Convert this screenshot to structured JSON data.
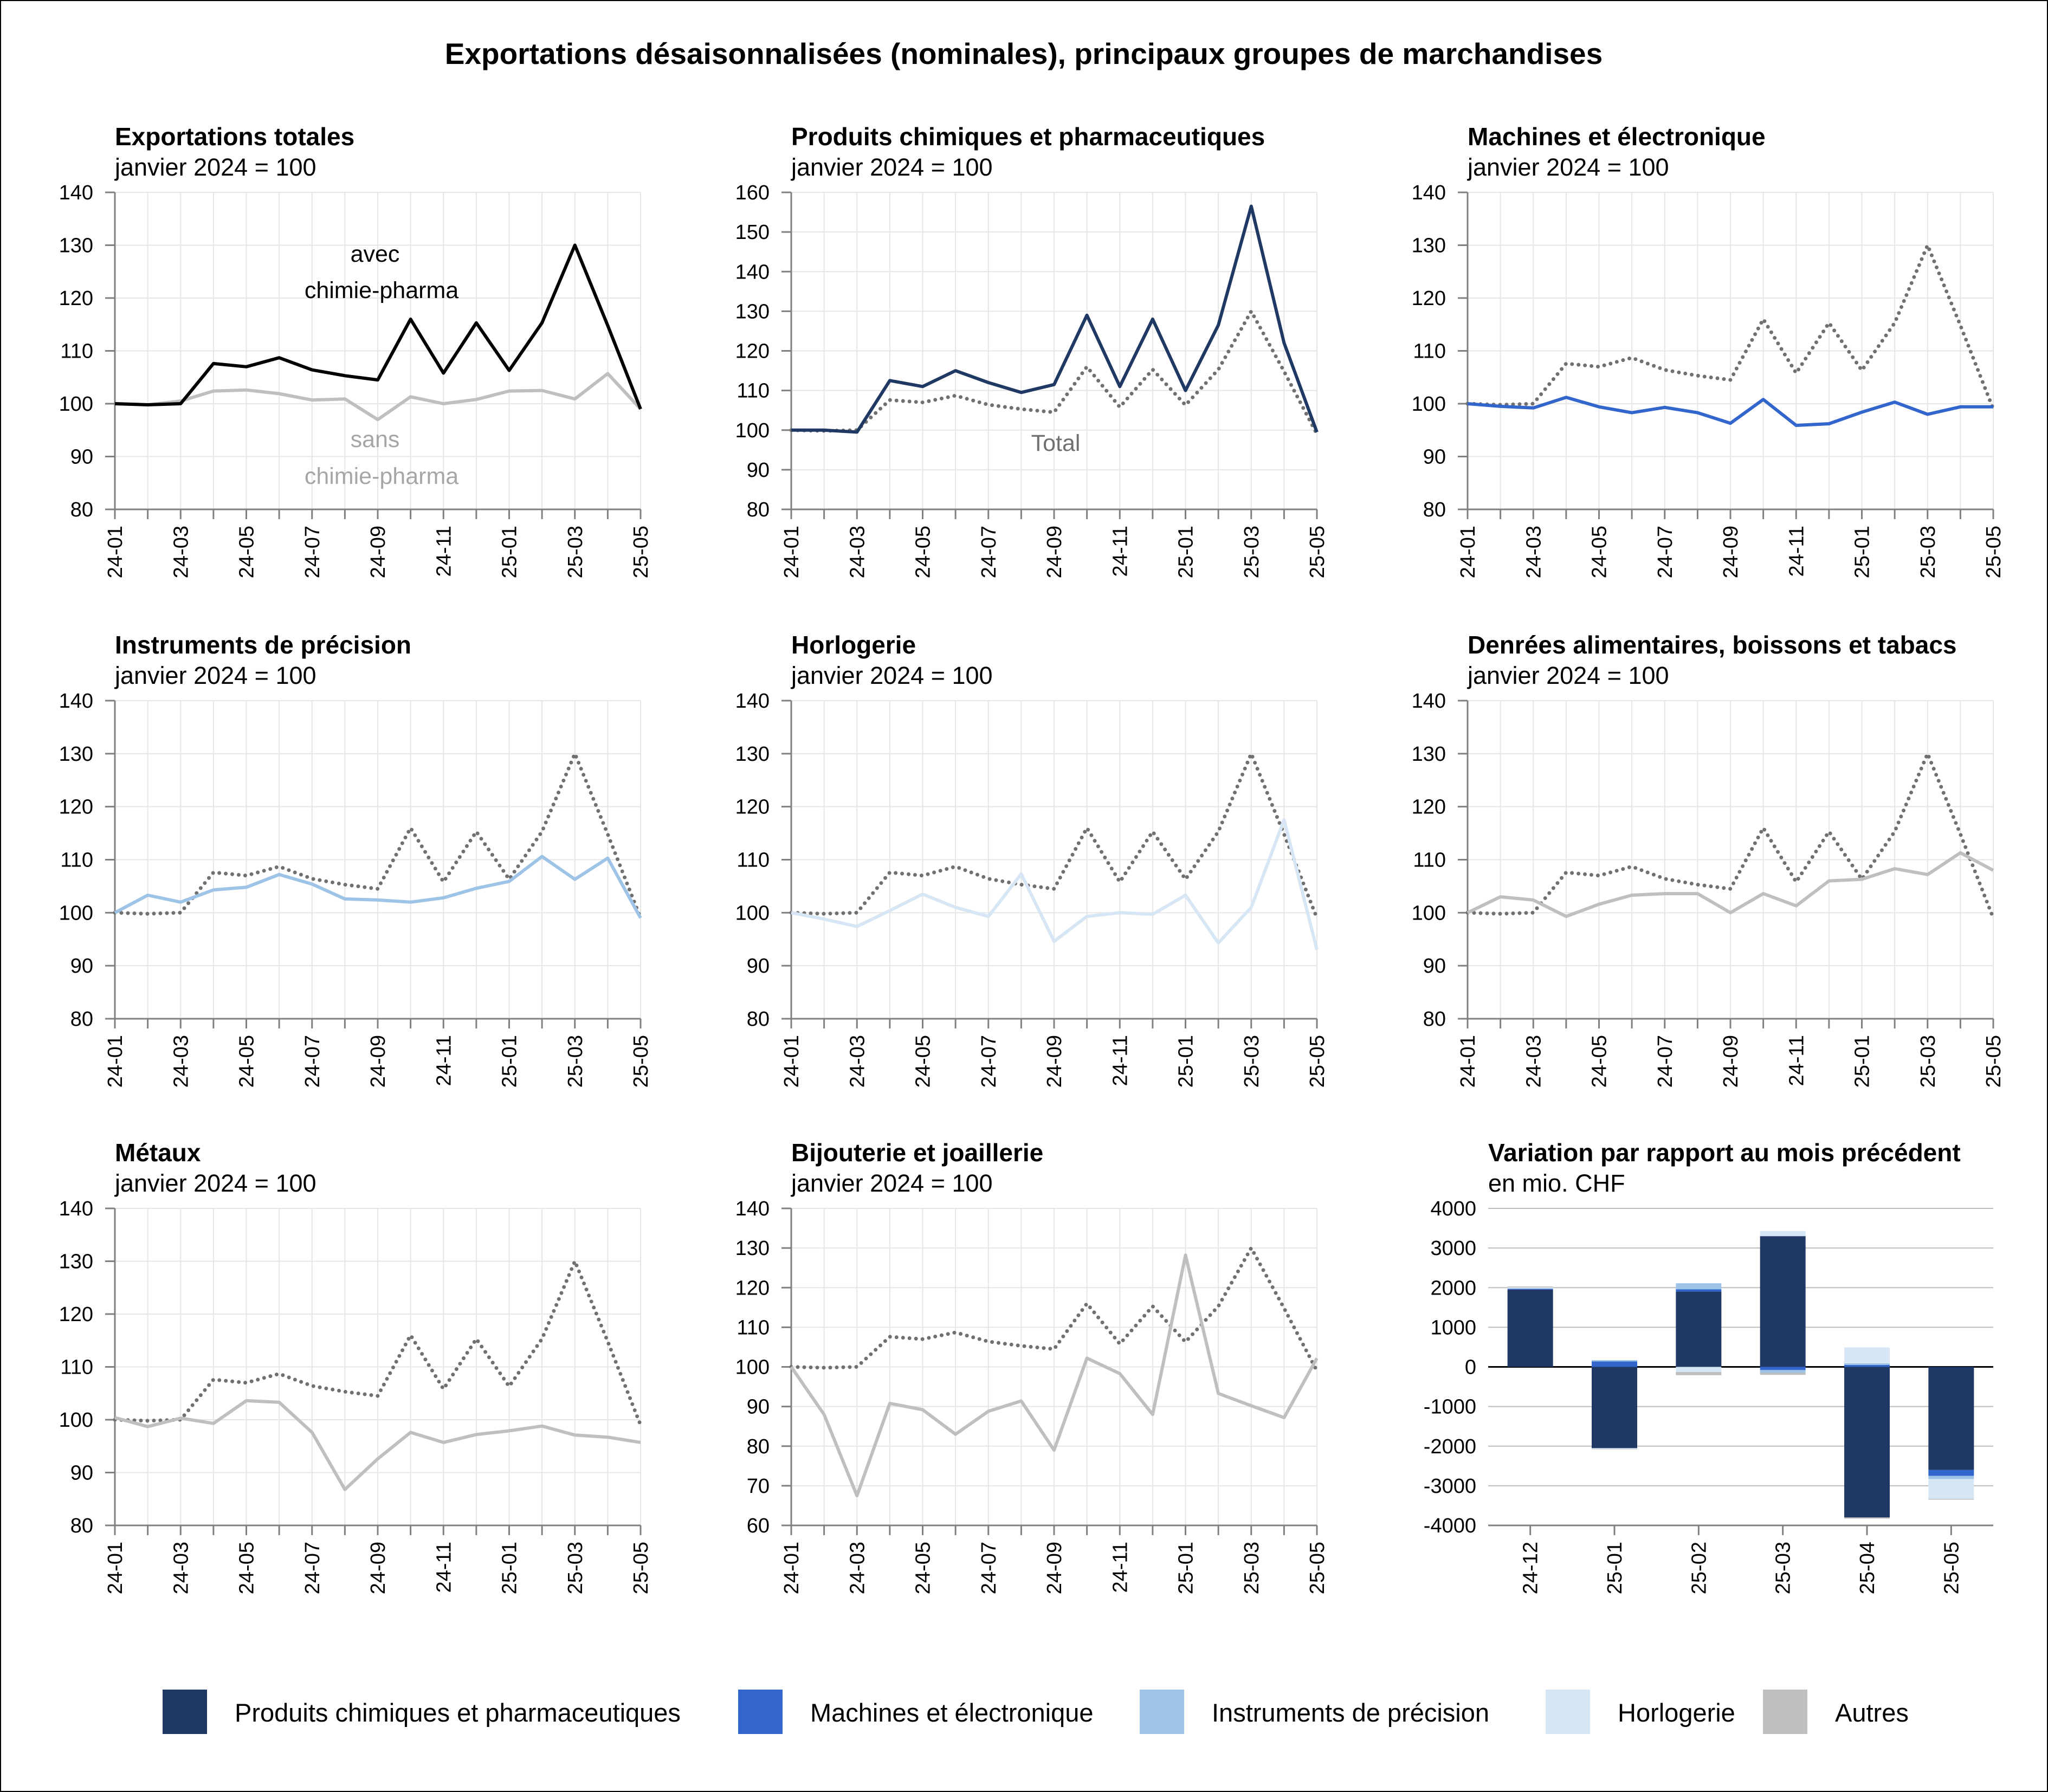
{
  "title": "Exportations désaisonnalisées (nominales), principaux groupes de marchandises",
  "colors": {
    "pharma": "#1f3864",
    "machines": "#3366cc",
    "precision": "#9dc3e6",
    "watches": "#d6e6f5",
    "others": "#bfbfbf",
    "total": "#000000",
    "total_dotted": "#707070",
    "excl_pharma": "#bfbfbf"
  },
  "legend": [
    {
      "label": "Produits chimiques et pharmaceutiques",
      "color": "#1f3864"
    },
    {
      "label": "Machines et électronique",
      "color": "#3366cc"
    },
    {
      "label": "Instruments de précision",
      "color": "#9dc3e6"
    },
    {
      "label": "Horlogerie",
      "color": "#d6e6f5"
    },
    {
      "label": "Autres",
      "color": "#bfbfbf"
    }
  ],
  "chart_data": [
    {
      "type": "line",
      "title": "Exportations totales",
      "subtitle": "janvier 2024 = 100",
      "x": [
        "24-01",
        "24-02",
        "24-03",
        "24-04",
        "24-05",
        "24-06",
        "24-07",
        "24-08",
        "24-09",
        "24-10",
        "24-11",
        "24-12",
        "25-01",
        "25-02",
        "25-03",
        "25-04",
        "25-05"
      ],
      "x_tick_labels": [
        "24-01",
        "24-03",
        "24-05",
        "24-07",
        "24-09",
        "24-11",
        "25-01",
        "25-03",
        "25-05"
      ],
      "ylim": [
        80,
        140
      ],
      "yticks": [
        80,
        90,
        100,
        110,
        120,
        130,
        140
      ],
      "series": [
        {
          "name": "avec chimie-pharma",
          "color": "#000000",
          "style": "solid",
          "values": [
            100,
            99.8,
            100,
            107.6,
            107,
            108.7,
            106.4,
            105.3,
            104.5,
            116,
            105.8,
            115.3,
            106.3,
            115.3,
            130,
            114.8,
            99
          ]
        },
        {
          "name": "sans chimie-pharma",
          "color": "#bfbfbf",
          "style": "solid",
          "values": [
            100,
            99.8,
            100.5,
            102.4,
            102.6,
            101.9,
            100.7,
            100.9,
            97,
            101.3,
            100,
            100.8,
            102.4,
            102.5,
            100.9,
            105.7,
            99
          ]
        }
      ],
      "annotations": [
        {
          "lines": [
            "avec",
            "chimie-pharma"
          ],
          "color": "#000000"
        },
        {
          "lines": [
            "sans",
            "chimie-pharma"
          ],
          "color": "#a6a6a6"
        }
      ]
    },
    {
      "type": "line",
      "title": "Produits chimiques et pharmaceutiques",
      "subtitle": "janvier 2024 = 100",
      "x": [
        "24-01",
        "24-02",
        "24-03",
        "24-04",
        "24-05",
        "24-06",
        "24-07",
        "24-08",
        "24-09",
        "24-10",
        "24-11",
        "24-12",
        "25-01",
        "25-02",
        "25-03",
        "25-04",
        "25-05"
      ],
      "x_tick_labels": [
        "24-01",
        "24-03",
        "24-05",
        "24-07",
        "24-09",
        "24-11",
        "25-01",
        "25-03",
        "25-05"
      ],
      "ylim": [
        80,
        160
      ],
      "yticks": [
        80,
        90,
        100,
        110,
        120,
        130,
        140,
        150,
        160
      ],
      "series": [
        {
          "name": "Produits chimiques et pharmaceutiques",
          "color": "#1f3864",
          "style": "solid",
          "values": [
            100,
            100,
            99.5,
            112.5,
            111,
            115,
            112,
            109.5,
            111.5,
            129,
            111,
            128,
            110,
            126.5,
            156.5,
            122,
            99.5
          ]
        },
        {
          "name": "Total",
          "color": "#707070",
          "style": "dotted",
          "values": [
            100,
            99.8,
            100,
            107.6,
            107,
            108.7,
            106.4,
            105.3,
            104.5,
            116,
            105.8,
            115.3,
            106.3,
            115.3,
            130,
            114.8,
            99
          ]
        }
      ],
      "annotations": [
        {
          "lines": [
            "Total"
          ],
          "color": "#707070"
        }
      ]
    },
    {
      "type": "line",
      "title": "Machines et électronique",
      "subtitle": "janvier 2024 = 100",
      "x": [
        "24-01",
        "24-02",
        "24-03",
        "24-04",
        "24-05",
        "24-06",
        "24-07",
        "24-08",
        "24-09",
        "24-10",
        "24-11",
        "24-12",
        "25-01",
        "25-02",
        "25-03",
        "25-04",
        "25-05"
      ],
      "x_tick_labels": [
        "24-01",
        "24-03",
        "24-05",
        "24-07",
        "24-09",
        "24-11",
        "25-01",
        "25-03",
        "25-05"
      ],
      "ylim": [
        80,
        140
      ],
      "yticks": [
        80,
        90,
        100,
        110,
        120,
        130,
        140
      ],
      "series": [
        {
          "name": "Machines et électronique",
          "color": "#3366cc",
          "style": "solid",
          "values": [
            100,
            99.5,
            99.2,
            101.2,
            99.4,
            98.3,
            99.3,
            98.3,
            96.3,
            100.8,
            95.9,
            96.2,
            98.4,
            100.3,
            98,
            99.4,
            99.4
          ]
        },
        {
          "name": "Total",
          "color": "#707070",
          "style": "dotted",
          "values": [
            100,
            99.8,
            100,
            107.6,
            107,
            108.7,
            106.4,
            105.3,
            104.5,
            116,
            105.8,
            115.3,
            106.3,
            115.3,
            130,
            114.8,
            99
          ]
        }
      ]
    },
    {
      "type": "line",
      "title": "Instruments de précision",
      "subtitle": "janvier 2024 = 100",
      "x": [
        "24-01",
        "24-02",
        "24-03",
        "24-04",
        "24-05",
        "24-06",
        "24-07",
        "24-08",
        "24-09",
        "24-10",
        "24-11",
        "24-12",
        "25-01",
        "25-02",
        "25-03",
        "25-04",
        "25-05"
      ],
      "x_tick_labels": [
        "24-01",
        "24-03",
        "24-05",
        "24-07",
        "24-09",
        "24-11",
        "25-01",
        "25-03",
        "25-05"
      ],
      "ylim": [
        80,
        140
      ],
      "yticks": [
        80,
        90,
        100,
        110,
        120,
        130,
        140
      ],
      "series": [
        {
          "name": "Instruments de précision",
          "color": "#9dc3e6",
          "style": "solid",
          "values": [
            100,
            103.3,
            102,
            104.3,
            104.8,
            107.2,
            105.4,
            102.6,
            102.4,
            102,
            102.8,
            104.6,
            105.9,
            110.6,
            106.3,
            110.3,
            99
          ]
        },
        {
          "name": "Total",
          "color": "#707070",
          "style": "dotted",
          "values": [
            100,
            99.8,
            100,
            107.6,
            107,
            108.7,
            106.4,
            105.3,
            104.5,
            116,
            105.8,
            115.3,
            106.3,
            115.3,
            130,
            114.8,
            99
          ]
        }
      ]
    },
    {
      "type": "line",
      "title": "Horlogerie",
      "subtitle": "janvier 2024 = 100",
      "x": [
        "24-01",
        "24-02",
        "24-03",
        "24-04",
        "24-05",
        "24-06",
        "24-07",
        "24-08",
        "24-09",
        "24-10",
        "24-11",
        "24-12",
        "25-01",
        "25-02",
        "25-03",
        "25-04",
        "25-05"
      ],
      "x_tick_labels": [
        "24-01",
        "24-03",
        "24-05",
        "24-07",
        "24-09",
        "24-11",
        "25-01",
        "25-03",
        "25-05"
      ],
      "ylim": [
        80,
        140
      ],
      "yticks": [
        80,
        90,
        100,
        110,
        120,
        130,
        140
      ],
      "series": [
        {
          "name": "Horlogerie",
          "color": "#d6e6f5",
          "style": "solid",
          "values": [
            100,
            98.8,
            97.4,
            100.4,
            103.5,
            101,
            99.3,
            107.3,
            94.6,
            99.3,
            100,
            99.7,
            103.3,
            94.3,
            101,
            117.5,
            93
          ]
        },
        {
          "name": "Total",
          "color": "#707070",
          "style": "dotted",
          "values": [
            100,
            99.8,
            100,
            107.6,
            107,
            108.7,
            106.4,
            105.3,
            104.5,
            116,
            105.8,
            115.3,
            106.3,
            115.3,
            130,
            114.8,
            99
          ]
        }
      ]
    },
    {
      "type": "line",
      "title": "Denrées alimentaires, boissons et tabacs",
      "subtitle": "janvier 2024 = 100",
      "x": [
        "24-01",
        "24-02",
        "24-03",
        "24-04",
        "24-05",
        "24-06",
        "24-07",
        "24-08",
        "24-09",
        "24-10",
        "24-11",
        "24-12",
        "25-01",
        "25-02",
        "25-03",
        "25-04",
        "25-05"
      ],
      "x_tick_labels": [
        "24-01",
        "24-03",
        "24-05",
        "24-07",
        "24-09",
        "24-11",
        "25-01",
        "25-03",
        "25-05"
      ],
      "ylim": [
        80,
        140
      ],
      "yticks": [
        80,
        90,
        100,
        110,
        120,
        130,
        140
      ],
      "series": [
        {
          "name": "Denrées alimentaires, boissons et tabacs",
          "color": "#bfbfbf",
          "style": "solid",
          "values": [
            100,
            103,
            102.4,
            99.3,
            101.6,
            103.3,
            103.6,
            103.6,
            100,
            103.6,
            101.3,
            106,
            106.3,
            108.3,
            107.2,
            111.3,
            108
          ]
        },
        {
          "name": "Total",
          "color": "#707070",
          "style": "dotted",
          "values": [
            100,
            99.8,
            100,
            107.6,
            107,
            108.7,
            106.4,
            105.3,
            104.5,
            116,
            105.8,
            115.3,
            106.3,
            115.3,
            130,
            114.8,
            99
          ]
        }
      ]
    },
    {
      "type": "line",
      "title": "Métaux",
      "subtitle": "janvier 2024 = 100",
      "x": [
        "24-01",
        "24-02",
        "24-03",
        "24-04",
        "24-05",
        "24-06",
        "24-07",
        "24-08",
        "24-09",
        "24-10",
        "24-11",
        "24-12",
        "25-01",
        "25-02",
        "25-03",
        "25-04",
        "25-05"
      ],
      "x_tick_labels": [
        "24-01",
        "24-03",
        "24-05",
        "24-07",
        "24-09",
        "24-11",
        "25-01",
        "25-03",
        "25-05"
      ],
      "ylim": [
        80,
        140
      ],
      "yticks": [
        80,
        90,
        100,
        110,
        120,
        130,
        140
      ],
      "series": [
        {
          "name": "Métaux",
          "color": "#bfbfbf",
          "style": "solid",
          "values": [
            100.4,
            98.7,
            100.3,
            99.3,
            103.6,
            103.3,
            97.6,
            86.8,
            92.6,
            97.6,
            95.7,
            97.2,
            97.9,
            98.8,
            97.1,
            96.7,
            95.7
          ]
        },
        {
          "name": "Total",
          "color": "#707070",
          "style": "dotted",
          "values": [
            100,
            99.8,
            100,
            107.6,
            107,
            108.7,
            106.4,
            105.3,
            104.5,
            116,
            105.8,
            115.3,
            106.3,
            115.3,
            130,
            114.8,
            99
          ]
        }
      ]
    },
    {
      "type": "line",
      "title": "Bijouterie et joaillerie",
      "subtitle": "janvier 2024 = 100",
      "x": [
        "24-01",
        "24-02",
        "24-03",
        "24-04",
        "24-05",
        "24-06",
        "24-07",
        "24-08",
        "24-09",
        "24-10",
        "24-11",
        "24-12",
        "25-01",
        "25-02",
        "25-03",
        "25-04",
        "25-05"
      ],
      "x_tick_labels": [
        "24-01",
        "24-03",
        "24-05",
        "24-07",
        "24-09",
        "24-11",
        "25-01",
        "25-03",
        "25-05"
      ],
      "ylim": [
        60,
        140
      ],
      "yticks": [
        60,
        70,
        80,
        90,
        100,
        110,
        120,
        130,
        140
      ],
      "series": [
        {
          "name": "Bijouterie et joaillerie",
          "color": "#bfbfbf",
          "style": "solid",
          "values": [
            100,
            88,
            67.5,
            90.8,
            89.2,
            83,
            88.8,
            91.4,
            79,
            102.2,
            98.3,
            88,
            128.2,
            93.3,
            90.2,
            87.2,
            102.2
          ]
        },
        {
          "name": "Total",
          "color": "#707070",
          "style": "dotted",
          "values": [
            100,
            99.8,
            100,
            107.6,
            107,
            108.7,
            106.4,
            105.3,
            104.5,
            116,
            105.8,
            115.3,
            106.3,
            115.3,
            130,
            114.8,
            99
          ]
        }
      ]
    },
    {
      "type": "bar",
      "stacked": true,
      "title": "Variation par rapport au mois précédent",
      "subtitle": "en mio. CHF",
      "categories": [
        "24-12",
        "25-01",
        "25-02",
        "25-03",
        "25-04",
        "25-05"
      ],
      "ylim": [
        -4000,
        4000
      ],
      "yticks": [
        -4000,
        -3000,
        -2000,
        -1000,
        0,
        1000,
        2000,
        3000,
        4000
      ],
      "series": [
        {
          "name": "Produits chimiques et pharmaceutiques",
          "color": "#1f3864",
          "values": [
            1950,
            -2050,
            1900,
            3300,
            -3800,
            -2600
          ]
        },
        {
          "name": "Machines et électronique",
          "color": "#3366cc",
          "values": [
            20,
            140,
            60,
            -80,
            50,
            -150
          ]
        },
        {
          "name": "Instruments de précision",
          "color": "#9dc3e6",
          "values": [
            10,
            30,
            150,
            -70,
            40,
            -80
          ]
        },
        {
          "name": "Horlogerie",
          "color": "#d6e6f5",
          "values": [
            30,
            -20,
            -130,
            130,
            400,
            -500
          ]
        },
        {
          "name": "Autres",
          "color": "#bfbfbf",
          "values": [
            20,
            -10,
            -80,
            -50,
            -30,
            -20
          ]
        }
      ]
    }
  ]
}
